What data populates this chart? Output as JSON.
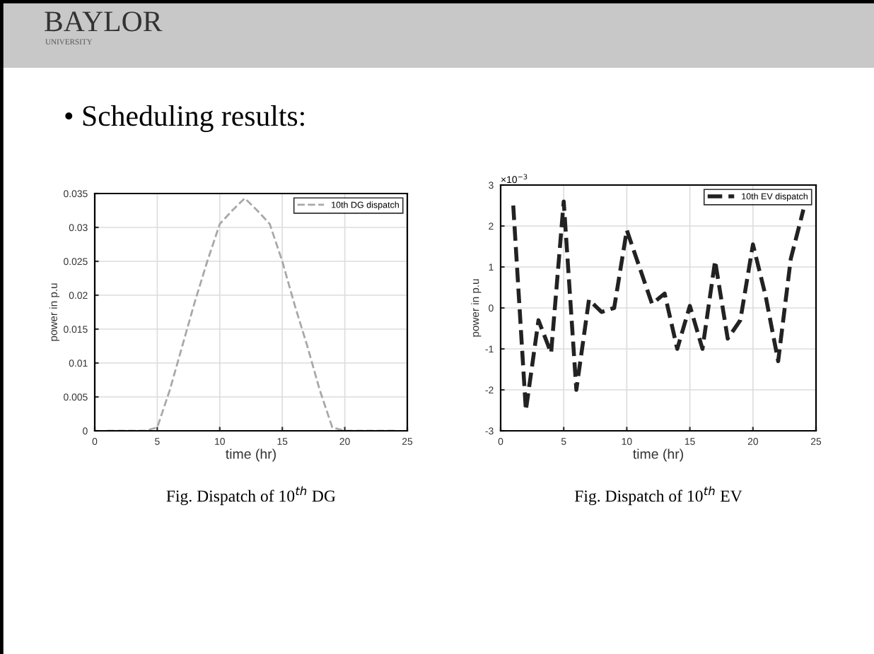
{
  "chart_data": [
    {
      "type": "line",
      "xlabel": "time (hr)",
      "ylabel": "power in p.u",
      "annotations": [
        "BAYLOR",
        "UNIVERSITY",
        "• Scheduling results:",
        "Fig. Dispatch of 10$^{th}$ DG"
      ],
      "x": [
        1,
        2,
        3,
        4,
        5,
        6,
        7,
        8,
        9,
        10,
        11,
        12,
        13,
        14,
        15,
        16,
        17,
        18,
        19,
        20,
        21,
        22,
        23,
        24
      ],
      "series": [
        {
          "name": "10th DG dispatch",
          "color": "#a8a8a8",
          "values": [
            0,
            0,
            0,
            0,
            0.0005,
            0.006,
            0.0125,
            0.019,
            0.025,
            0.0305,
            0.0325,
            0.0343,
            0.0325,
            0.0305,
            0.025,
            0.0185,
            0.0125,
            0.006,
            0.0005,
            0,
            0,
            0,
            0,
            0
          ]
        }
      ],
      "xlim": [
        0,
        25
      ],
      "xticks": [
        0,
        5,
        10,
        15,
        20,
        25
      ],
      "ylim": [
        0,
        0.035
      ],
      "yticks": [
        0,
        0.005,
        0.01,
        0.015,
        0.02,
        0.025,
        0.03,
        0.035
      ],
      "grid": true,
      "legend": "top right",
      "marker": "none",
      "line_style": "dashed"
    },
    {
      "type": "line",
      "xlabel": "time (hr)",
      "ylabel": "power in p.u",
      "annotations": [
        "×10$^{−3}$",
        "Fig. Dispatch of 10$^{th}$ EV"
      ],
      "x": [
        1,
        2,
        3,
        4,
        5,
        6,
        7,
        8,
        9,
        10,
        11,
        12,
        13,
        14,
        15,
        16,
        17,
        18,
        19,
        20,
        21,
        22,
        23,
        24
      ],
      "series": [
        {
          "name": "10th EV dispatch",
          "color": "#222222",
          "values": [
            2.5,
            -2.5,
            -0.3,
            -1.1,
            2.6,
            -2.0,
            0.2,
            -0.1,
            0.0,
            1.9,
            1.0,
            0.1,
            0.35,
            -1.0,
            0.05,
            -1.0,
            1.15,
            -0.75,
            -0.3,
            1.55,
            0.3,
            -1.3,
            1.2,
            2.4
          ]
        }
      ],
      "xlim": [
        0,
        25
      ],
      "xticks": [
        0,
        5,
        10,
        15,
        20,
        25
      ],
      "ylim": [
        -3,
        3
      ],
      "yticks": [
        -3,
        -2,
        -1,
        0,
        1,
        2,
        3
      ],
      "grid": true,
      "legend": "top right",
      "marker": "none",
      "line_style": "dashed"
    }
  ]
}
